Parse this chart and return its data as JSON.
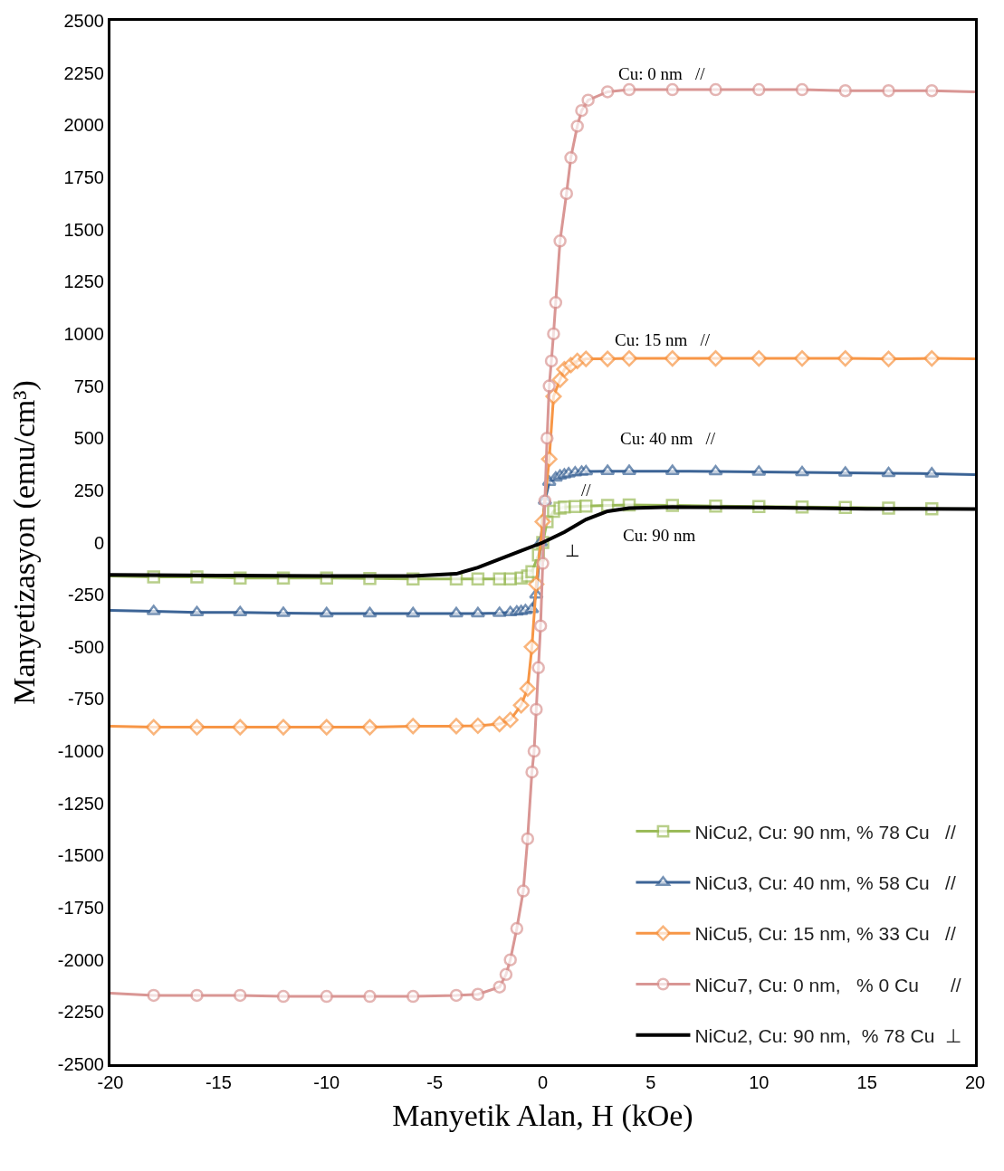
{
  "chart_data": {
    "type": "line",
    "xlabel": "Manyetik Alan, H (kOe)",
    "ylabel": "Manyetizasyon (emu/cm³)",
    "xlim": [
      -20,
      20
    ],
    "xticks": [
      -20,
      -15,
      -10,
      -5,
      0,
      5,
      10,
      15,
      20
    ],
    "ylim": [
      -2500,
      2500
    ],
    "yticks": [
      -2500,
      -2250,
      -2000,
      -1750,
      -1500,
      -1250,
      -1000,
      -750,
      -500,
      -250,
      0,
      250,
      500,
      750,
      1000,
      1250,
      1500,
      1750,
      2000,
      2250,
      2500
    ],
    "grid": false,
    "legend": "bottom right",
    "line_style": "solid",
    "series": [
      {
        "name": "NiCu2, Cu: 90 nm, % 78 Cu   //",
        "color": "#9bbb59",
        "marker": "square",
        "x": [
          -20,
          -18,
          -16,
          -14,
          -12,
          -10,
          -8,
          -6,
          -4,
          -3,
          -2,
          -1.5,
          -1,
          -0.7,
          -0.5,
          -0.2,
          0,
          0.2,
          0.5,
          0.8,
          1,
          1.5,
          2,
          3,
          4,
          6,
          8,
          10,
          12,
          14,
          16,
          18,
          20
        ],
        "values": [
          -160,
          -165,
          -165,
          -170,
          -170,
          -170,
          -172,
          -175,
          -175,
          -175,
          -175,
          -175,
          -170,
          -160,
          -140,
          -60,
          0,
          100,
          150,
          165,
          170,
          172,
          175,
          178,
          180,
          178,
          175,
          172,
          170,
          168,
          165,
          162,
          160
        ]
      },
      {
        "name": "NiCu3, Cu: 40 nm, % 58 Cu   //",
        "color": "#3c6496",
        "marker": "triangle",
        "x": [
          -20,
          -18,
          -16,
          -14,
          -12,
          -10,
          -8,
          -6,
          -4,
          -3,
          -2,
          -1.5,
          -1.2,
          -1,
          -0.8,
          -0.5,
          -0.3,
          -0.1,
          0.1,
          0.3,
          0.6,
          0.8,
          1,
          1.2,
          1.5,
          1.8,
          2,
          3,
          4,
          6,
          8,
          10,
          12,
          14,
          16,
          18,
          20
        ],
        "values": [
          -325,
          -330,
          -335,
          -335,
          -338,
          -340,
          -340,
          -340,
          -340,
          -340,
          -338,
          -335,
          -332,
          -330,
          -325,
          -320,
          -250,
          0,
          200,
          290,
          310,
          320,
          325,
          330,
          335,
          338,
          340,
          342,
          342,
          342,
          340,
          338,
          336,
          334,
          332,
          330,
          325
        ]
      },
      {
        "name": "NiCu5, Cu: 15 nm, % 33 Cu   //",
        "color": "#f79646",
        "marker": "diamond",
        "x": [
          -20,
          -18,
          -16,
          -14,
          -12,
          -10,
          -8,
          -6,
          -4,
          -3,
          -2,
          -1.5,
          -1,
          -0.7,
          -0.5,
          -0.3,
          0,
          0.3,
          0.5,
          0.8,
          1,
          1.3,
          1.6,
          2,
          3,
          4,
          6,
          8,
          10,
          12,
          14,
          16,
          18,
          20
        ],
        "values": [
          -880,
          -885,
          -885,
          -885,
          -885,
          -885,
          -885,
          -880,
          -880,
          -878,
          -870,
          -850,
          -780,
          -700,
          -500,
          -200,
          100,
          400,
          700,
          780,
          830,
          850,
          870,
          880,
          880,
          882,
          882,
          882,
          882,
          882,
          882,
          880,
          882,
          880
        ]
      },
      {
        "name": "NiCu7, Cu: 0 nm,   % 0 Cu      //",
        "color": "#d99694",
        "marker": "circle",
        "x": [
          -20,
          -18,
          -16,
          -14,
          -12,
          -10,
          -8,
          -6,
          -4,
          -3,
          -2,
          -1.7,
          -1.5,
          -1.2,
          -0.9,
          -0.7,
          -0.5,
          -0.4,
          -0.3,
          -0.2,
          -0.1,
          0,
          0.1,
          0.2,
          0.3,
          0.4,
          0.5,
          0.6,
          0.8,
          1.1,
          1.3,
          1.6,
          1.8,
          2.1,
          3,
          4,
          6,
          8,
          10,
          12,
          14,
          16,
          18,
          20
        ],
        "values": [
          -2160,
          -2170,
          -2170,
          -2170,
          -2175,
          -2175,
          -2175,
          -2175,
          -2170,
          -2165,
          -2130,
          -2070,
          -2000,
          -1850,
          -1670,
          -1420,
          -1100,
          -1000,
          -800,
          -600,
          -400,
          -100,
          200,
          500,
          750,
          870,
          1000,
          1150,
          1445,
          1672,
          1844,
          1995,
          2070,
          2120,
          2160,
          2170,
          2170,
          2170,
          2170,
          2170,
          2165,
          2165,
          2165,
          2160
        ]
      },
      {
        "name": "NiCu2, Cu: 90 nm,  % 78 Cu  ⊥",
        "color": "#000000",
        "marker": "none",
        "x": [
          -20,
          -15,
          -10,
          -6,
          -4,
          -3,
          -2,
          -1,
          0,
          1,
          2,
          3,
          4,
          6,
          10,
          15,
          20
        ],
        "values": [
          -155,
          -158,
          -160,
          -160,
          -150,
          -120,
          -80,
          -40,
          0,
          50,
          110,
          150,
          165,
          170,
          168,
          162,
          160
        ]
      }
    ],
    "annotations": [
      "Cu: 0 nm   //",
      "Cu: 15 nm   //",
      "Cu: 40 nm   //",
      "//",
      "Cu: 90 nm",
      "⊥"
    ]
  }
}
